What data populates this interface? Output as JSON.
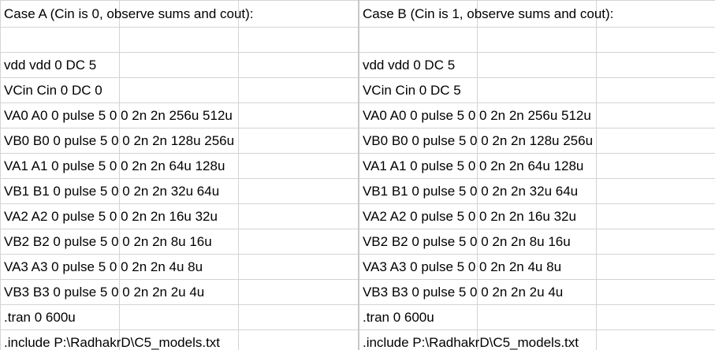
{
  "sheet": {
    "rows": [
      {
        "a": "Case A (Cin is 0, observe sums and cout):",
        "b": "Case B (Cin is 1, observe sums and cout):"
      },
      {
        "a": "",
        "b": ""
      },
      {
        "a": "vdd vdd 0 DC 5",
        "b": "vdd vdd 0 DC 5"
      },
      {
        "a": "VCin Cin 0 DC 0",
        "b": "VCin Cin 0 DC 5"
      },
      {
        "a": "VA0 A0 0 pulse 5 0 0 2n 2n 256u 512u",
        "b": "VA0 A0 0 pulse 5 0 0 2n 2n 256u 512u"
      },
      {
        "a": "VB0 B0 0 pulse 5 0 0 2n 2n 128u 256u",
        "b": "VB0 B0 0 pulse 5 0 0 2n 2n 128u 256u"
      },
      {
        "a": "VA1 A1 0 pulse 5 0 0 2n 2n 64u 128u",
        "b": "VA1 A1 0 pulse 5 0 0 2n 2n 64u 128u"
      },
      {
        "a": "VB1 B1 0 pulse 5 0 0 2n 2n 32u 64u",
        "b": "VB1 B1 0 pulse 5 0 0 2n 2n 32u 64u"
      },
      {
        "a": "VA2 A2 0 pulse 5 0 0 2n 2n 16u 32u",
        "b": "VA2 A2 0 pulse 5 0 0 2n 2n 16u 32u"
      },
      {
        "a": "VB2 B2 0 pulse 5 0 0 2n 2n 8u 16u",
        "b": "VB2 B2 0 pulse 5 0 0 2n 2n 8u 16u"
      },
      {
        "a": "VA3 A3 0 pulse 5 0 0 2n 2n 4u 8u",
        "b": "VA3 A3 0 pulse 5 0 0 2n 2n 4u 8u"
      },
      {
        "a": "VB3 B3 0 pulse 5 0 0 2n 2n 2u 4u",
        "b": "VB3 B3 0 pulse 5 0 0 2n 2n 2u 4u"
      },
      {
        "a": ".tran 0 600u",
        "b": ".tran 0 600u"
      },
      {
        "a": ".include P:\\RadhakrD\\C5_models.txt",
        "b": ".include P:\\RadhakrD\\C5_models.txt"
      }
    ]
  }
}
